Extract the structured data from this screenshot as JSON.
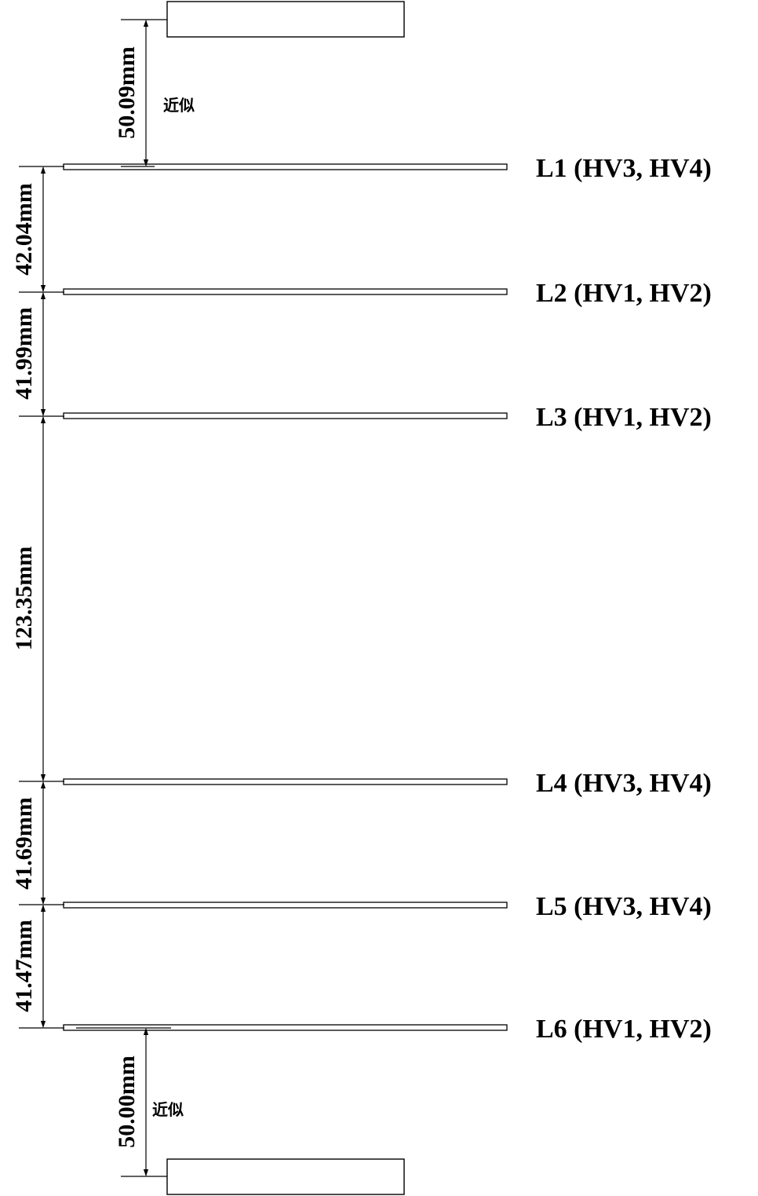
{
  "layers": [
    {
      "label": "L1 (HV3, HV4)"
    },
    {
      "label": "L2 (HV1, HV2)"
    },
    {
      "label": "L3 (HV1, HV2)"
    },
    {
      "label": "L4 (HV3, HV4)"
    },
    {
      "label": "L5 (HV3, HV4)"
    },
    {
      "label": "L6 (HV1, HV2)"
    }
  ],
  "spacings": [
    {
      "label": "42.04mm"
    },
    {
      "label": "41.99mm"
    },
    {
      "label": "123.35mm"
    },
    {
      "label": "41.69mm"
    },
    {
      "label": "41.47mm"
    }
  ],
  "top_gap": {
    "label": "50.09mm",
    "note": "近似"
  },
  "bottom_gap": {
    "label": "50.00mm",
    "note": "近似"
  }
}
